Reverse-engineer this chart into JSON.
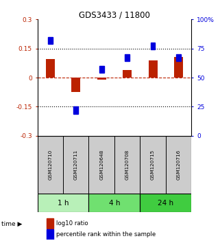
{
  "title": "GDS3433 / 11800",
  "samples": [
    "GSM120710",
    "GSM120711",
    "GSM120648",
    "GSM120708",
    "GSM120715",
    "GSM120716"
  ],
  "log10_ratio": [
    0.095,
    -0.075,
    -0.01,
    0.04,
    0.09,
    0.105
  ],
  "percentile_rank": [
    82,
    22,
    57,
    67,
    77,
    67
  ],
  "groups": [
    {
      "label": "1 h",
      "indices": [
        0,
        1
      ],
      "color": "#b8f0b8"
    },
    {
      "label": "4 h",
      "indices": [
        2,
        3
      ],
      "color": "#70e070"
    },
    {
      "label": "24 h",
      "indices": [
        4,
        5
      ],
      "color": "#40cc40"
    }
  ],
  "ylim_left": [
    -0.3,
    0.3
  ],
  "ylim_right": [
    0,
    100
  ],
  "yticks_left": [
    -0.3,
    -0.15,
    0,
    0.15,
    0.3
  ],
  "yticks_right": [
    0,
    25,
    50,
    75,
    100
  ],
  "ytick_labels_left": [
    "-0.3",
    "-0.15",
    "0",
    "0.15",
    "0.3"
  ],
  "ytick_labels_right": [
    "0",
    "25",
    "50",
    "75",
    "100%"
  ],
  "hlines_y": [
    0.15,
    -0.15
  ],
  "bar_width": 0.35,
  "red_color": "#bb2200",
  "blue_color": "#0000dd",
  "legend_red": "log10 ratio",
  "legend_blue": "percentile rank within the sample",
  "header_bg": "#cccccc"
}
